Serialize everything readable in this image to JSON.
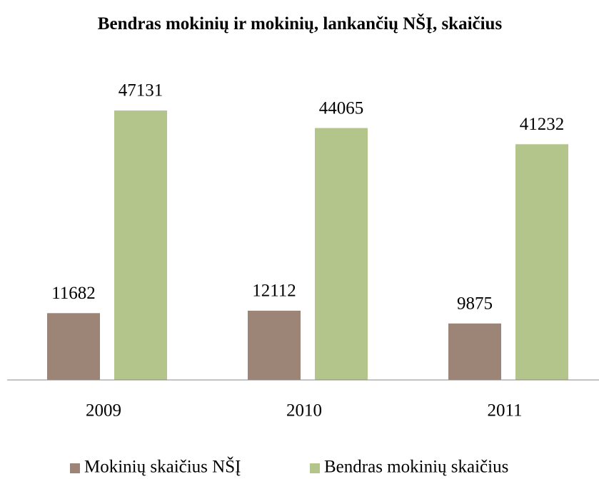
{
  "chart_data": {
    "type": "bar",
    "title": "Bendras mokinių  ir mokinių, lankančių NŠĮ, skaičius",
    "categories": [
      "2009",
      "2010",
      "2011"
    ],
    "series": [
      {
        "name": "Mokinių skaičius NŠĮ",
        "color": "#9c8576",
        "values": [
          11682,
          12112,
          9875
        ]
      },
      {
        "name": "Bendras mokinių skaičius",
        "color": "#b3c58b",
        "values": [
          47131,
          44065,
          41232
        ]
      }
    ],
    "ylim": [
      0,
      50000
    ],
    "legend": "bottom"
  }
}
